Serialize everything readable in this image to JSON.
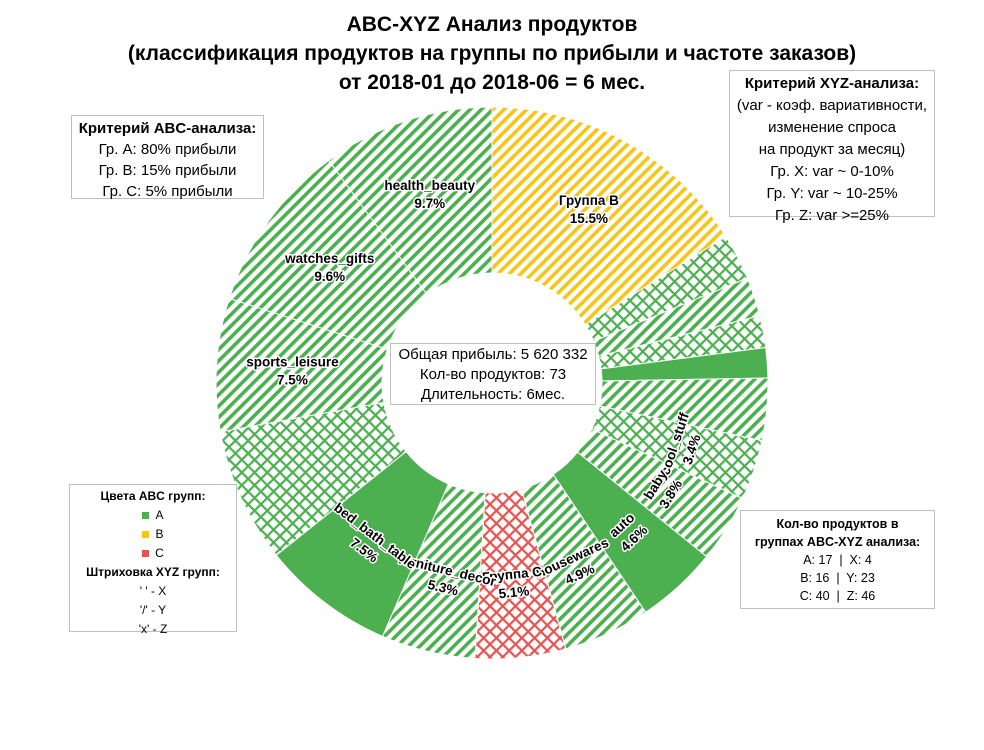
{
  "title": {
    "line1": "ABC-XYZ Анализ продуктов",
    "line2": "(классификация продуктов на группы по прибыли и частоте заказов)",
    "line3": "от 2018-01 до 2018-06 = 6 мес."
  },
  "abc_criteria": {
    "heading": "Критерий ABC-анализа:",
    "lines": [
      "Гр. A: 80% прибыли",
      "Гр. B: 15% прибыли",
      "Гр. C: 5% прибыли"
    ]
  },
  "xyz_criteria": {
    "heading": "Критерий XYZ-анализа:",
    "lines": [
      "(var - коэф. вариативности,",
      "изменение спроса",
      "на продукт за месяц)",
      "Гр. X: var ~ 0-10%",
      "Гр. Y: var ~ 10-25%",
      "Гр. Z: var >=25%"
    ]
  },
  "center_info": {
    "lines": [
      "Общая прибыль: 5 620 332",
      "Кол-во продуктов: 73",
      "Длительность: 6мес."
    ]
  },
  "colors_legend": {
    "heading": "Цвета ABC групп:",
    "items": [
      {
        "label": "A",
        "color": "#4caf50"
      },
      {
        "label": "B",
        "color": "#f5c518"
      },
      {
        "label": "C",
        "color": "#e8534f"
      }
    ],
    "hatch_heading": "Штриховка XYZ групп:",
    "hatch_items": [
      "' ' - X",
      "'/' - Y",
      "'x' - Z"
    ]
  },
  "counts": {
    "heading_line1": "Кол-во продуктов в",
    "heading_line2": "группах ABC-XYZ анализа:",
    "rows": [
      "A: 17  |  X: 4",
      "B: 16  |  Y: 23",
      "C: 40  |  Z: 46"
    ]
  },
  "chart_data": {
    "type": "pie",
    "subtype": "donut",
    "start": "12 o'clock, clockwise",
    "slices": [
      {
        "label": "Группа B",
        "value": 15.5,
        "display": "15.5%",
        "abc": "B",
        "xyz": "Y"
      },
      {
        "label": "",
        "value": 2.6,
        "display": "",
        "abc": "A",
        "xyz": "Z"
      },
      {
        "label": "",
        "value": 2.2,
        "display": "",
        "abc": "A",
        "xyz": "Y"
      },
      {
        "label": "",
        "value": 1.8,
        "display": "",
        "abc": "A",
        "xyz": "Z"
      },
      {
        "label": "",
        "value": 1.7,
        "display": "",
        "abc": "A",
        "xyz": "X"
      },
      {
        "label": "",
        "value": 3.5,
        "display": "",
        "abc": "A",
        "xyz": "Y"
      },
      {
        "label": "cool_stuff",
        "value": 3.4,
        "display": "3.4%",
        "abc": "A",
        "xyz": "Z"
      },
      {
        "label": "baby",
        "value": 3.8,
        "display": "3.8%",
        "abc": "A",
        "xyz": "Y"
      },
      {
        "label": "auto",
        "value": 4.6,
        "display": "4.6%",
        "abc": "A",
        "xyz": "X"
      },
      {
        "label": "housewares",
        "value": 4.9,
        "display": "4.9%",
        "abc": "A",
        "xyz": "Y"
      },
      {
        "label": "Группа C",
        "value": 5.1,
        "display": "5.1%",
        "abc": "C",
        "xyz": "Z"
      },
      {
        "label": "furniture_decor",
        "value": 5.3,
        "display": "5.3%",
        "abc": "A",
        "xyz": "Y"
      },
      {
        "label": "bed_bath_table",
        "value": 7.5,
        "display": "7.5%",
        "abc": "A",
        "xyz": "X"
      },
      {
        "label": "",
        "value": 7.6,
        "display": "",
        "abc": "A",
        "xyz": "Z"
      },
      {
        "label": "sports_leisure",
        "value": 7.5,
        "display": "7.5%",
        "abc": "A",
        "xyz": "Y"
      },
      {
        "label": "watches_gifts",
        "value": 9.6,
        "display": "9.6%",
        "abc": "A",
        "xyz": "Y"
      },
      {
        "label": "health_beauty",
        "value": 9.7,
        "display": "9.7%",
        "abc": "A",
        "xyz": "Y"
      }
    ]
  }
}
